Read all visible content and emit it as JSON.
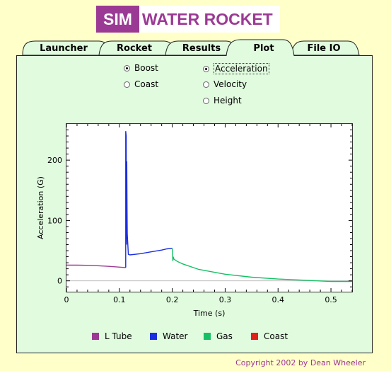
{
  "logo": {
    "sim": "SIM",
    "title": "WATER ROCKET"
  },
  "tabs": [
    {
      "label": "Launcher",
      "active": false
    },
    {
      "label": "Rocket",
      "active": false
    },
    {
      "label": "Results",
      "active": false
    },
    {
      "label": "Plot",
      "active": true
    },
    {
      "label": "File IO",
      "active": false
    }
  ],
  "phase_options": {
    "boost": "Boost",
    "coast": "Coast",
    "selected": "Boost"
  },
  "quantity_options": {
    "acceleration": "Acceleration",
    "velocity": "Velocity",
    "height": "Height",
    "selected": "Acceleration"
  },
  "chart_data": {
    "type": "line",
    "xlabel": "Time (s)",
    "ylabel": "Acceleration (G)",
    "xlim": [
      0,
      0.54
    ],
    "ylim": [
      -18,
      260
    ],
    "xticks": [
      "0",
      "0.1",
      "0.2",
      "0.3",
      "0.4",
      "0.5"
    ],
    "yticks": [
      "0",
      "100",
      "200"
    ],
    "series": [
      {
        "name": "L Tube",
        "color": "#9b3a94",
        "x": [
          0,
          0.02,
          0.05,
          0.08,
          0.112
        ],
        "y": [
          26,
          26,
          25.5,
          24,
          22
        ]
      },
      {
        "name": "Water",
        "color": "#1a2ee0",
        "x": [
          0.112,
          0.112,
          0.113,
          0.1135,
          0.114,
          0.1145,
          0.115,
          0.117,
          0.12,
          0.14,
          0.16,
          0.18,
          0.19,
          0.2
        ],
        "y": [
          22,
          248,
          240,
          60,
          198,
          120,
          78,
          44,
          43,
          45,
          48,
          51,
          53,
          54
        ]
      },
      {
        "name": "Gas",
        "color": "#15c065",
        "x": [
          0.2,
          0.201,
          0.202,
          0.203,
          0.21,
          0.22,
          0.25,
          0.3,
          0.35,
          0.4,
          0.45,
          0.5,
          0.54
        ],
        "y": [
          54,
          33,
          40,
          36,
          32,
          28,
          19,
          11,
          6,
          3,
          1,
          -1,
          -1
        ]
      },
      {
        "name": "Coast",
        "color": "#e0201a",
        "x": [],
        "y": []
      }
    ]
  },
  "copyright": "Copyright 2002 by Dean Wheeler"
}
